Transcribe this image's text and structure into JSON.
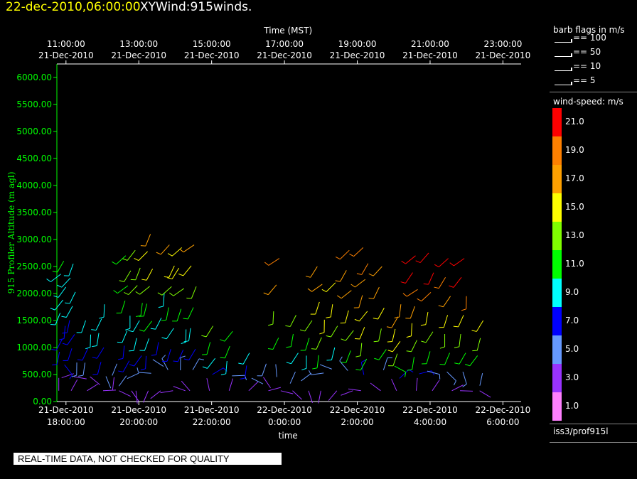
{
  "header": {
    "date_time": "22-dec-2010,06:00:00",
    "product": "XYWind:915winds."
  },
  "legend": {
    "barb_title": "barb flags in m/s",
    "barbs": [
      "== 100",
      "== 50",
      "== 10",
      "== 5"
    ],
    "speed_title": "wind-speed: m/s",
    "speed_levels": [
      {
        "label": "21.0",
        "color": "#ff0000"
      },
      {
        "label": "19.0",
        "color": "#ff8000"
      },
      {
        "label": "17.0",
        "color": "#ffa000"
      },
      {
        "label": "15.0",
        "color": "#ffff00"
      },
      {
        "label": "13.0",
        "color": "#80ff00"
      },
      {
        "label": "11.0",
        "color": "#00ff00"
      },
      {
        "label": "9.0",
        "color": "#00ffff"
      },
      {
        "label": "7.0",
        "color": "#0000ff"
      },
      {
        "label": "5.0",
        "color": "#6699ff"
      },
      {
        "label": "3.0",
        "color": "#9933ff"
      },
      {
        "label": "1.0",
        "color": "#ff80ff"
      }
    ],
    "station": "iss3/prof915l"
  },
  "disclaimer": "REAL-TIME DATA, NOT CHECKED FOR QUALITY",
  "chart_data": {
    "type": "scatter",
    "subtype": "wind barbs",
    "title": "22-dec-2010,06:00:00 XYWind:915winds.",
    "ylabel": "915 Profiler Altitude (m agl)",
    "xlabel_bottom": "time",
    "xlabel_top": "Time (MST)",
    "ylim": [
      0,
      6250
    ],
    "yticks": [
      "0.00",
      "500.00",
      "1000.00",
      "1500.00",
      "2000.00",
      "2500.00",
      "3000.00",
      "3500.00",
      "4000.00",
      "4500.00",
      "5000.00",
      "5500.00",
      "6000.00"
    ],
    "bottom_ticks": [
      {
        "date": "21-Dec-2010",
        "time": "18:00:00"
      },
      {
        "date": "21-Dec-2010",
        "time": "20:00:00"
      },
      {
        "date": "21-Dec-2010",
        "time": "22:00:00"
      },
      {
        "date": "22-Dec-2010",
        "time": "0:00:00"
      },
      {
        "date": "22-Dec-2010",
        "time": "2:00:00"
      },
      {
        "date": "22-Dec-2010",
        "time": "4:00:00"
      },
      {
        "date": "22-Dec-2010",
        "time": "6:00:00"
      }
    ],
    "top_ticks": [
      {
        "time": "11:00:00",
        "date": "21-Dec-2010"
      },
      {
        "time": "13:00:00",
        "date": "21-Dec-2010"
      },
      {
        "time": "15:00:00",
        "date": "21-Dec-2010"
      },
      {
        "time": "17:00:00",
        "date": "21-Dec-2010"
      },
      {
        "time": "19:00:00",
        "date": "21-Dec-2010"
      },
      {
        "time": "21:00:00",
        "date": "21-Dec-2010"
      },
      {
        "time": "23:00:00",
        "date": "21-Dec-2010"
      }
    ],
    "x_range_hours": [
      17.75,
      30.5
    ],
    "profiles": [
      {
        "t": 17.9,
        "top": 2600,
        "s": [
          2,
          3,
          6,
          6,
          7,
          7,
          8,
          8,
          9,
          9,
          10
        ]
      },
      {
        "t": 18.2,
        "top": 2550,
        "s": [
          2,
          3,
          5,
          6,
          7,
          7,
          8,
          8,
          9,
          9
        ]
      },
      {
        "t": 18.6,
        "top": 1500,
        "s": [
          2,
          3,
          5,
          7,
          8,
          8
        ]
      },
      {
        "t": 19.0,
        "top": 1800,
        "s": [
          2,
          4,
          6,
          7,
          8,
          8,
          9
        ]
      },
      {
        "t": 19.4,
        "top": 700,
        "s": [
          2,
          3,
          4
        ]
      },
      {
        "t": 19.7,
        "top": 2700,
        "s": [
          3,
          4,
          6,
          7,
          8,
          9,
          10,
          11,
          12,
          11
        ]
      },
      {
        "t": 20.0,
        "top": 2800,
        "s": [
          3,
          4,
          7,
          8,
          9,
          10,
          12,
          13,
          12
        ]
      },
      {
        "t": 20.3,
        "top": 3100,
        "s": [
          2,
          5,
          7,
          8,
          10,
          11,
          13,
          14,
          15,
          16
        ]
      },
      {
        "t": 20.6,
        "top": 2000,
        "s": [
          2,
          4,
          6,
          8,
          9
        ]
      },
      {
        "t": 20.9,
        "top": 2900,
        "s": [
          2,
          5,
          7,
          9,
          10,
          13,
          15,
          16
        ]
      },
      {
        "t": 21.2,
        "top": 2850,
        "s": [
          2,
          5,
          7,
          9,
          10,
          12,
          14,
          15
        ]
      },
      {
        "t": 21.5,
        "top": 2900,
        "s": [
          3,
          5,
          7,
          9,
          11,
          13,
          15,
          16
        ]
      },
      {
        "t": 22.0,
        "top": 1400,
        "s": [
          3,
          6,
          8,
          11,
          12
        ]
      },
      {
        "t": 22.5,
        "top": 1300,
        "s": [
          3,
          5,
          8,
          10,
          11
        ]
      },
      {
        "t": 23.0,
        "top": 900,
        "s": [
          2,
          4,
          7,
          9
        ]
      },
      {
        "t": 23.5,
        "top": 700,
        "s": [
          2,
          3,
          5
        ]
      },
      {
        "t": 23.8,
        "top": 2650,
        "s": [
          2,
          4,
          11,
          12,
          17,
          18
        ]
      },
      {
        "t": 24.3,
        "top": 1600,
        "s": [
          2,
          4,
          8,
          11,
          12
        ]
      },
      {
        "t": 24.7,
        "top": 1500,
        "s": [
          2,
          4,
          9,
          11,
          12
        ]
      },
      {
        "t": 25.0,
        "top": 2500,
        "s": [
          2,
          5,
          10,
          12,
          14,
          15,
          16,
          17
        ]
      },
      {
        "t": 25.4,
        "top": 2200,
        "s": [
          2,
          4,
          9,
          12,
          14,
          15
        ]
      },
      {
        "t": 25.8,
        "top": 2800,
        "s": [
          3,
          5,
          10,
          12,
          14,
          16,
          17,
          18
        ]
      },
      {
        "t": 26.2,
        "top": 2850,
        "s": [
          3,
          6,
          11,
          13,
          14,
          15,
          16,
          17,
          18,
          19
        ]
      },
      {
        "t": 26.7,
        "top": 2500,
        "s": [
          3,
          5,
          11,
          13,
          15,
          16,
          17
        ]
      },
      {
        "t": 27.1,
        "top": 1800,
        "s": [
          3,
          6,
          11,
          13,
          14,
          15,
          16,
          17
        ]
      },
      {
        "t": 27.6,
        "top": 2700,
        "s": [
          3,
          6,
          11,
          13,
          15,
          17,
          19,
          20,
          21
        ]
      },
      {
        "t": 28.0,
        "top": 2750,
        "s": [
          3,
          5,
          11,
          13,
          15,
          18,
          20,
          21
        ]
      },
      {
        "t": 28.5,
        "top": 2650,
        "s": [
          2,
          5,
          11,
          13,
          15,
          17,
          19,
          21
        ]
      },
      {
        "t": 28.9,
        "top": 2650,
        "s": [
          2,
          5,
          10,
          12,
          15,
          18,
          20,
          21
        ]
      },
      {
        "t": 29.4,
        "top": 1500,
        "s": [
          2,
          4,
          10,
          12,
          14
        ]
      }
    ]
  }
}
